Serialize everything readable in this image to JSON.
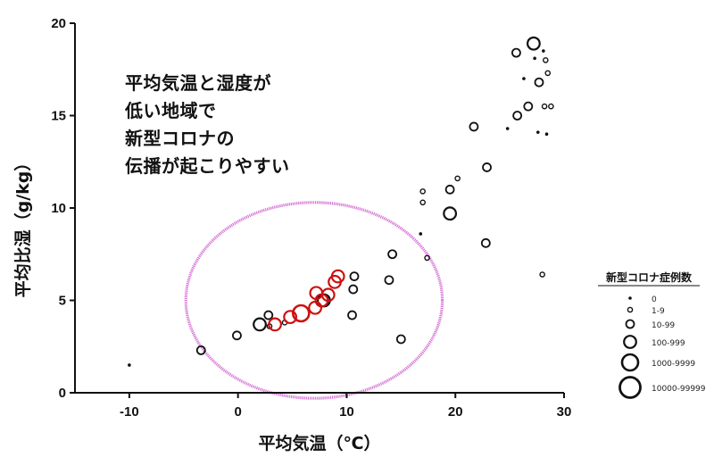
{
  "chart_data": {
    "type": "scatter",
    "title": "",
    "xlabel": "平均気温（℃）",
    "ylabel": "平均比湿（g/kg）",
    "xlim": [
      -15,
      30
    ],
    "ylim": [
      0,
      20
    ],
    "x_ticks": [
      -10,
      0,
      10,
      20,
      30
    ],
    "y_ticks": [
      0,
      5,
      10,
      15,
      20
    ],
    "x_tick_labels": [
      "-10",
      "0",
      "10",
      "20",
      "30"
    ],
    "y_tick_labels": [
      "0",
      "5",
      "10",
      "15",
      "20"
    ],
    "grid": false,
    "annotation_lines": [
      "平均気温と湿度が",
      "低い地域で",
      "新型コロナの",
      "伝播が起こりやすい"
    ],
    "highlight_ellipse": {
      "cx": 7.0,
      "cy": 5.0,
      "rx": 11.8,
      "ry": 5.3,
      "color": "#d060d0"
    },
    "legend": {
      "title": "新型コロナ症例数",
      "position": "right",
      "entries": [
        {
          "label": "0",
          "size_class": 0
        },
        {
          "label": "1-9",
          "size_class": 1
        },
        {
          "label": "10-99",
          "size_class": 2
        },
        {
          "label": "100-999",
          "size_class": 3
        },
        {
          "label": "1000-9999",
          "size_class": 4
        },
        {
          "label": "10000-99999",
          "size_class": 5
        }
      ]
    },
    "series": [
      {
        "color": "#111111",
        "points": [
          {
            "x": -10.0,
            "y": 1.5,
            "s": 0
          },
          {
            "x": -3.4,
            "y": 2.3,
            "s": 2
          },
          {
            "x": -0.1,
            "y": 3.1,
            "s": 2
          },
          {
            "x": 2.0,
            "y": 3.7,
            "s": 3
          },
          {
            "x": 2.8,
            "y": 4.2,
            "s": 2
          },
          {
            "x": 2.9,
            "y": 3.6,
            "s": 1
          },
          {
            "x": 4.3,
            "y": 3.8,
            "s": 1
          },
          {
            "x": 7.9,
            "y": 5.0,
            "s": 3
          },
          {
            "x": 10.7,
            "y": 6.3,
            "s": 2
          },
          {
            "x": 10.6,
            "y": 5.6,
            "s": 2
          },
          {
            "x": 10.5,
            "y": 4.2,
            "s": 2
          },
          {
            "x": 14.2,
            "y": 7.5,
            "s": 2
          },
          {
            "x": 13.9,
            "y": 6.1,
            "s": 2
          },
          {
            "x": 15.0,
            "y": 2.9,
            "s": 2
          },
          {
            "x": 16.8,
            "y": 8.6,
            "s": 0
          },
          {
            "x": 17.0,
            "y": 10.9,
            "s": 1
          },
          {
            "x": 17.0,
            "y": 10.3,
            "s": 1
          },
          {
            "x": 17.4,
            "y": 7.3,
            "s": 1
          },
          {
            "x": 19.5,
            "y": 9.7,
            "s": 3
          },
          {
            "x": 19.5,
            "y": 11.0,
            "s": 2
          },
          {
            "x": 20.2,
            "y": 11.6,
            "s": 1
          },
          {
            "x": 21.7,
            "y": 14.4,
            "s": 2
          },
          {
            "x": 22.8,
            "y": 8.1,
            "s": 2
          },
          {
            "x": 22.9,
            "y": 12.2,
            "s": 2
          },
          {
            "x": 24.8,
            "y": 14.3,
            "s": 0
          },
          {
            "x": 25.6,
            "y": 18.4,
            "s": 2
          },
          {
            "x": 25.7,
            "y": 15.0,
            "s": 2
          },
          {
            "x": 26.3,
            "y": 17.0,
            "s": 0
          },
          {
            "x": 26.7,
            "y": 15.5,
            "s": 2
          },
          {
            "x": 27.2,
            "y": 18.9,
            "s": 3
          },
          {
            "x": 27.3,
            "y": 18.1,
            "s": 0
          },
          {
            "x": 27.7,
            "y": 16.8,
            "s": 2
          },
          {
            "x": 27.6,
            "y": 14.1,
            "s": 0
          },
          {
            "x": 28.0,
            "y": 6.4,
            "s": 1
          },
          {
            "x": 28.1,
            "y": 18.5,
            "s": 0
          },
          {
            "x": 28.2,
            "y": 15.5,
            "s": 1
          },
          {
            "x": 28.3,
            "y": 18.0,
            "s": 1
          },
          {
            "x": 28.5,
            "y": 17.3,
            "s": 1
          },
          {
            "x": 28.4,
            "y": 14.0,
            "s": 0
          },
          {
            "x": 28.8,
            "y": 15.5,
            "s": 1
          }
        ]
      },
      {
        "color": "#cc1111",
        "points": [
          {
            "x": 3.4,
            "y": 3.7,
            "s": 3
          },
          {
            "x": 4.8,
            "y": 4.1,
            "s": 3
          },
          {
            "x": 5.8,
            "y": 4.3,
            "s": 4
          },
          {
            "x": 7.1,
            "y": 4.6,
            "s": 3
          },
          {
            "x": 7.2,
            "y": 5.4,
            "s": 3
          },
          {
            "x": 7.7,
            "y": 5.0,
            "s": 3
          },
          {
            "x": 8.3,
            "y": 5.3,
            "s": 3
          },
          {
            "x": 8.9,
            "y": 6.0,
            "s": 3
          },
          {
            "x": 9.2,
            "y": 6.3,
            "s": 3
          }
        ]
      }
    ]
  }
}
